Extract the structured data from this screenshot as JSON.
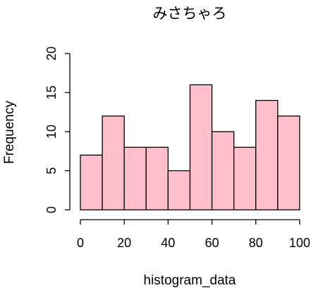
{
  "chart_data": {
    "type": "bar",
    "title": "みさちゃろ",
    "xlabel": "histogram_data",
    "ylabel": "Frequency",
    "bins": [
      [
        0,
        10
      ],
      [
        10,
        20
      ],
      [
        20,
        30
      ],
      [
        30,
        40
      ],
      [
        40,
        50
      ],
      [
        50,
        60
      ],
      [
        60,
        70
      ],
      [
        70,
        80
      ],
      [
        80,
        90
      ],
      [
        90,
        100
      ]
    ],
    "values": [
      7,
      12,
      8,
      8,
      5,
      16,
      10,
      8,
      14,
      12
    ],
    "xlim": [
      0,
      100
    ],
    "ylim": [
      0,
      20
    ],
    "xticks": [
      0,
      20,
      40,
      60,
      80,
      100
    ],
    "yticks": [
      0,
      5,
      10,
      15,
      20
    ],
    "bar_color": "#ffc0cb",
    "grid": false,
    "legend": "none"
  }
}
